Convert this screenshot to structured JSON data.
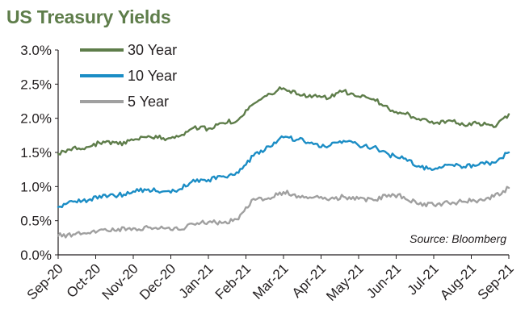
{
  "title": "US Treasury Yields",
  "source": "Source: Bloomberg",
  "chart_data": {
    "type": "line",
    "title": "US Treasury Yields",
    "xlabel": "",
    "ylabel": "",
    "ylim": [
      0,
      3
    ],
    "y_ticks": [
      "0.0%",
      "0.5%",
      "1.0%",
      "1.5%",
      "2.0%",
      "2.5%",
      "3.0%"
    ],
    "y_tick_values": [
      0,
      0.5,
      1,
      1.5,
      2,
      2.5,
      3
    ],
    "x_ticks": [
      "Sep-20",
      "Oct-20",
      "Nov-20",
      "Dec-20",
      "Jan-21",
      "Feb-21",
      "Mar-21",
      "Apr-21",
      "May-21",
      "Jun-21",
      "Jul-21",
      "Aug-21",
      "Sep-21"
    ],
    "legend_position": "top-left",
    "series": [
      {
        "name": "30 Year",
        "color": "#5E7D4A",
        "values": [
          1.48,
          1.57,
          1.58,
          1.66,
          1.62,
          1.68,
          1.74,
          1.71,
          1.73,
          1.86,
          1.85,
          1.93,
          1.98,
          2.21,
          2.36,
          2.44,
          2.35,
          2.33,
          2.29,
          2.4,
          2.32,
          2.28,
          2.14,
          2.07,
          1.99,
          1.92,
          1.97,
          1.9,
          1.93,
          1.87,
          2.06
        ]
      },
      {
        "name": "10 Year",
        "color": "#1B8DC5",
        "values": [
          0.7,
          0.78,
          0.8,
          0.88,
          0.87,
          0.93,
          0.96,
          0.93,
          0.95,
          1.1,
          1.1,
          1.15,
          1.2,
          1.45,
          1.59,
          1.72,
          1.69,
          1.62,
          1.59,
          1.67,
          1.6,
          1.58,
          1.47,
          1.41,
          1.3,
          1.25,
          1.32,
          1.29,
          1.32,
          1.35,
          1.5
        ]
      },
      {
        "name": "5 Year",
        "color": "#A0A0A0",
        "values": [
          0.28,
          0.3,
          0.32,
          0.37,
          0.38,
          0.39,
          0.4,
          0.39,
          0.37,
          0.45,
          0.48,
          0.47,
          0.52,
          0.82,
          0.83,
          0.92,
          0.86,
          0.84,
          0.8,
          0.85,
          0.82,
          0.8,
          0.88,
          0.85,
          0.74,
          0.73,
          0.76,
          0.78,
          0.8,
          0.85,
          0.98
        ]
      }
    ]
  }
}
